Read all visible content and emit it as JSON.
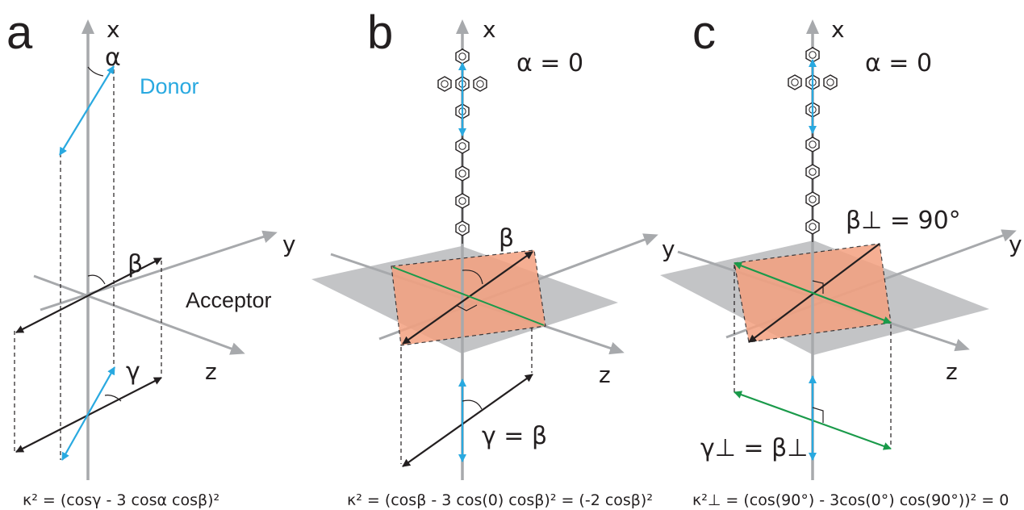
{
  "panels": [
    {
      "letter": "a",
      "x_label": "x",
      "y_label": "y",
      "z_label": "z",
      "alpha_label": "α",
      "beta_label": "β",
      "gamma_label": "γ",
      "donor_label": "Donor",
      "acceptor_label": "Acceptor",
      "formula": "κ² = (cosγ - 3 cosα cosβ)²"
    },
    {
      "letter": "b",
      "x_label": "x",
      "y_label": "y",
      "z_label": "z",
      "alpha_eq": "α = 0",
      "beta_label": "β",
      "gamma_eq": "γ = β",
      "formula": "κ² = (cosβ - 3 cos(0) cosβ)² =  (-2 cosβ)²"
    },
    {
      "letter": "c",
      "x_label": "x",
      "y_label": "y",
      "z_label": "z",
      "alpha_eq": "α = 0",
      "beta_eq": "β⊥ = 90°",
      "gamma_eq": "γ⊥ = β⊥",
      "formula": "κ²⊥ = (cos(90°) - 3cos(0°) cos(90°))² = 0"
    }
  ],
  "colors": {
    "axis": "#a7a9ac",
    "donor": "#29a9e0",
    "acceptor": "#231f20",
    "perpendicular": "#1a9a4a",
    "plane_orange": "#f4a07f",
    "plane_grey": "#bcbec0"
  }
}
